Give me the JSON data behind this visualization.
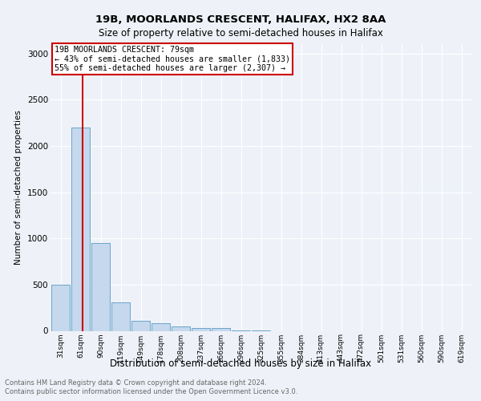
{
  "title": "19B, MOORLANDS CRESCENT, HALIFAX, HX2 8AA",
  "subtitle": "Size of property relative to semi-detached houses in Halifax",
  "xlabel": "Distribution of semi-detached houses by size in Halifax",
  "ylabel": "Number of semi-detached properties",
  "bin_labels": [
    "31sqm",
    "61sqm",
    "90sqm",
    "119sqm",
    "149sqm",
    "178sqm",
    "208sqm",
    "237sqm",
    "266sqm",
    "296sqm",
    "325sqm",
    "355sqm",
    "384sqm",
    "413sqm",
    "443sqm",
    "472sqm",
    "501sqm",
    "531sqm",
    "560sqm",
    "590sqm",
    "619sqm"
  ],
  "bar_values": [
    500,
    2200,
    950,
    310,
    105,
    85,
    50,
    30,
    30,
    5,
    5,
    0,
    0,
    0,
    0,
    0,
    0,
    0,
    0,
    0,
    0
  ],
  "bar_color": "#c5d8ed",
  "bar_edge_color": "#5a9ac5",
  "ylim": [
    0,
    3100
  ],
  "yticks": [
    0,
    500,
    1000,
    1500,
    2000,
    2500,
    3000
  ],
  "property_line_color": "#cc0000",
  "annotation_text": "19B MOORLANDS CRESCENT: 79sqm\n← 43% of semi-detached houses are smaller (1,833)\n55% of semi-detached houses are larger (2,307) →",
  "annotation_box_color": "#cc0000",
  "footer_line1": "Contains HM Land Registry data © Crown copyright and database right 2024.",
  "footer_line2": "Contains public sector information licensed under the Open Government Licence v3.0.",
  "background_color": "#eef2f8",
  "plot_bg_color": "#eef2f8",
  "grid_color": "#ffffff"
}
